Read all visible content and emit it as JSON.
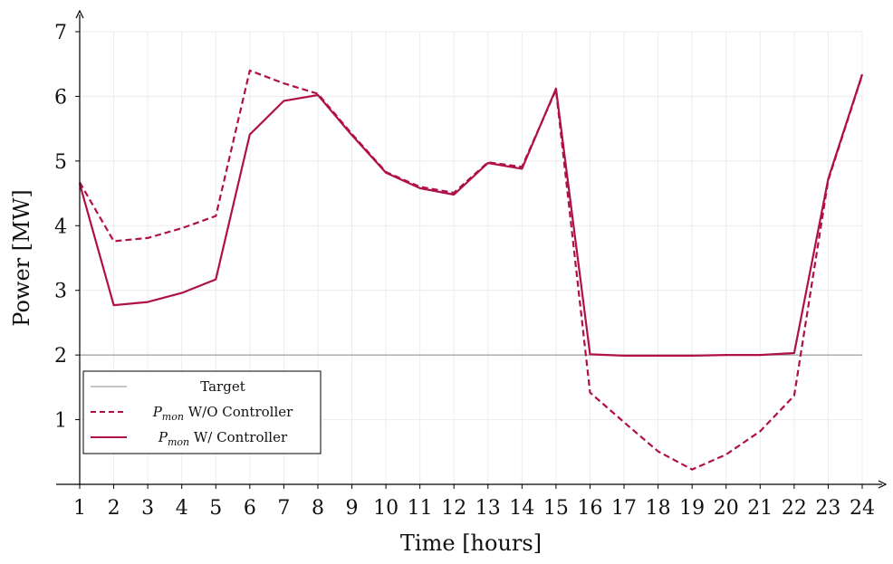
{
  "chart_data": {
    "type": "line",
    "xlabel": "Time [hours]",
    "ylabel": "Power [MW]",
    "xlim": [
      1,
      24
    ],
    "ylim": [
      0,
      7
    ],
    "x": [
      1,
      2,
      3,
      4,
      5,
      6,
      7,
      8,
      9,
      10,
      11,
      12,
      13,
      14,
      15,
      16,
      17,
      18,
      19,
      20,
      21,
      22,
      23,
      24
    ],
    "y_ticks": [
      1,
      2,
      3,
      4,
      5,
      6,
      7
    ],
    "grid": true,
    "legend_position": "bottom-left",
    "target": {
      "name": "Target",
      "value": 2.0,
      "color": "#888888"
    },
    "series": [
      {
        "name": "W/O Controller",
        "name_prefix": "P",
        "name_sub": "mon",
        "style": "dashed",
        "color": "#b0104a",
        "values": [
          4.67,
          3.76,
          3.81,
          3.96,
          4.15,
          6.4,
          6.2,
          6.04,
          5.42,
          4.83,
          4.6,
          4.51,
          4.98,
          4.91,
          6.1,
          1.42,
          0.96,
          0.51,
          0.23,
          0.46,
          0.82,
          1.37,
          4.7,
          6.33
        ]
      },
      {
        "name": "W/ Controller",
        "name_prefix": "P",
        "name_sub": "mon",
        "style": "solid",
        "color": "#b0104a",
        "values": [
          4.65,
          2.77,
          2.82,
          2.96,
          3.17,
          5.41,
          5.93,
          6.02,
          5.4,
          4.82,
          4.58,
          4.48,
          4.97,
          4.88,
          6.12,
          2.01,
          1.99,
          1.99,
          1.99,
          2.0,
          2.0,
          2.03,
          4.72,
          6.34
        ]
      }
    ]
  }
}
